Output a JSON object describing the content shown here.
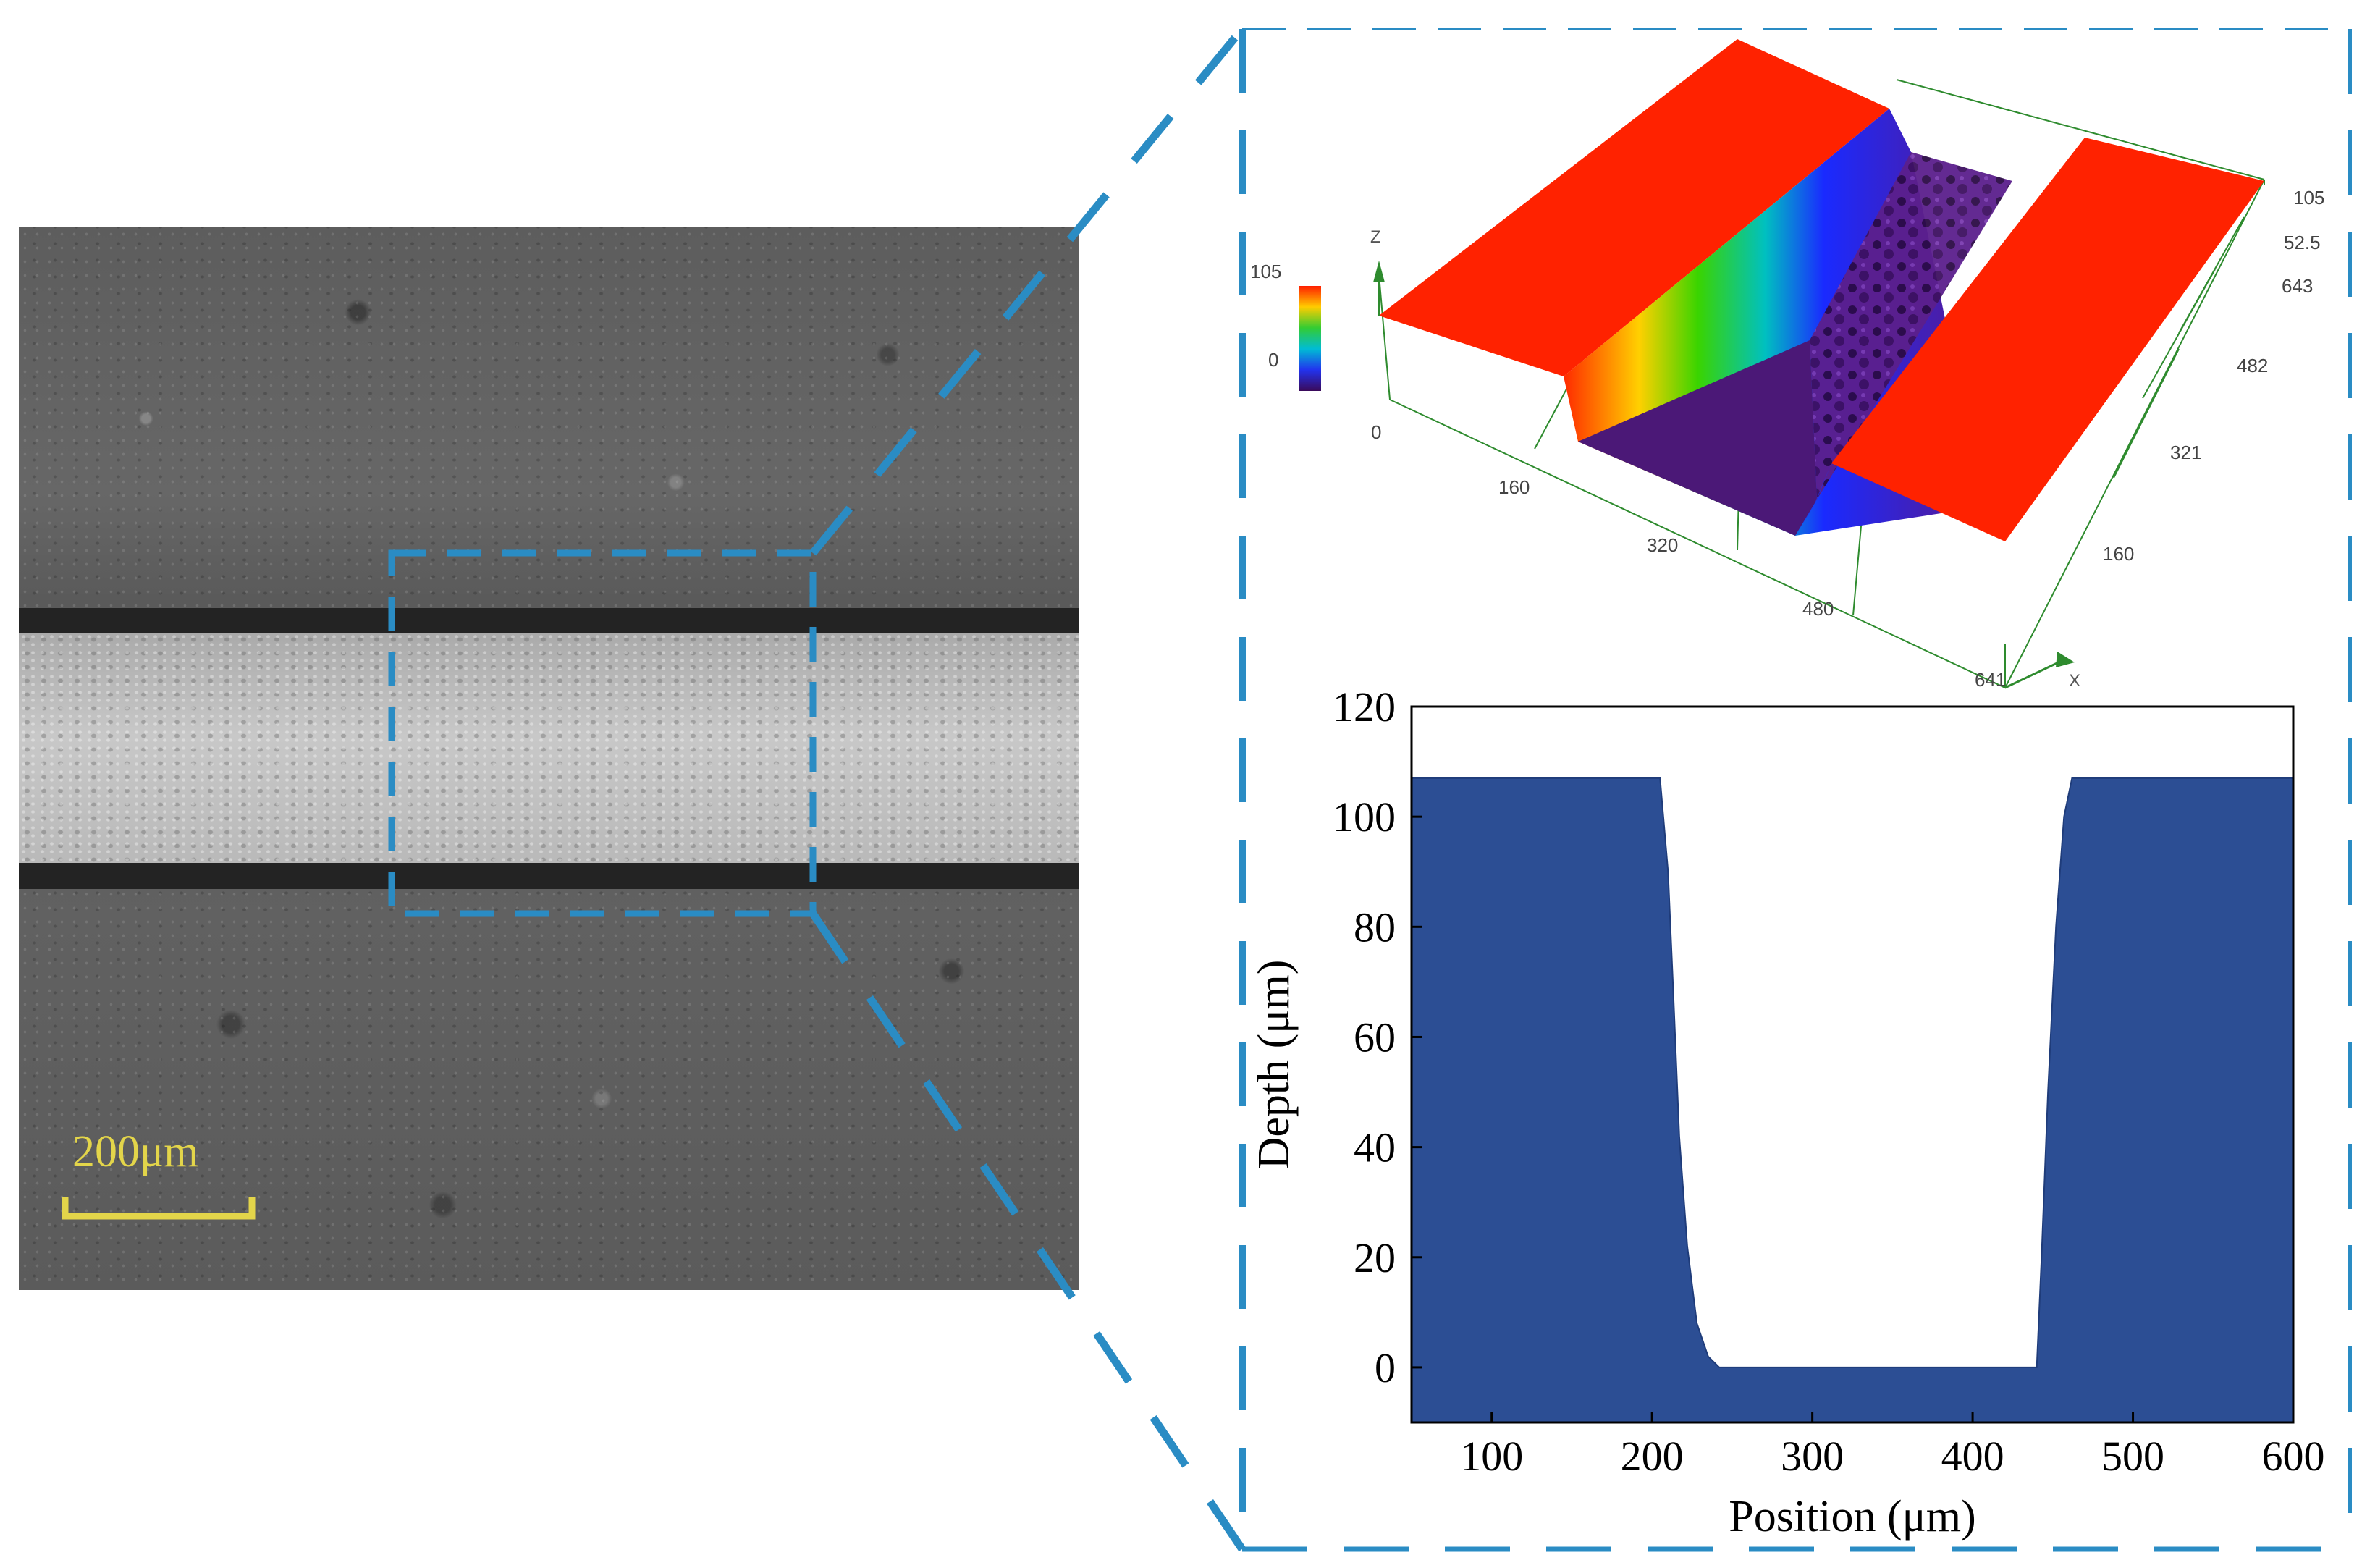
{
  "micrograph": {
    "scale_bar_label": "200μm",
    "colors": {
      "scale_bar": "#e3d54a",
      "zoom_box": "#2a8cc4"
    }
  },
  "surface_3d": {
    "z_axis_label": "Z",
    "x_axis_label": "X",
    "colorbar_ticks": [
      "105",
      "0"
    ],
    "z_ticks": [
      "105",
      "52.5",
      "0"
    ],
    "x_ticks": [
      "160",
      "320",
      "480",
      "641"
    ],
    "y_ticks": [
      "643",
      "482",
      "321",
      "160"
    ]
  },
  "chart_data": {
    "type": "area",
    "xlabel": "Position (μm)",
    "ylabel": "Depth (μm)",
    "xlim": [
      50,
      600
    ],
    "ylim": [
      -10,
      120
    ],
    "xticks": [
      "100",
      "200",
      "300",
      "400",
      "500",
      "600"
    ],
    "yticks": [
      "0",
      "20",
      "40",
      "60",
      "80",
      "100",
      "120"
    ],
    "series": [
      {
        "x": [
          50,
          100,
          150,
          205,
          210,
          213,
          217,
          222,
          228,
          235,
          242,
          250,
          300,
          350,
          400,
          440,
          443,
          447,
          452,
          457,
          462,
          470,
          500,
          550,
          600
        ],
        "y": [
          107,
          107,
          107,
          107,
          90,
          70,
          42,
          22,
          8,
          2,
          0,
          0,
          0,
          0,
          0,
          0,
          20,
          50,
          80,
          100,
          107,
          107,
          107,
          107,
          107
        ],
        "color": "#2c4e94"
      }
    ]
  }
}
